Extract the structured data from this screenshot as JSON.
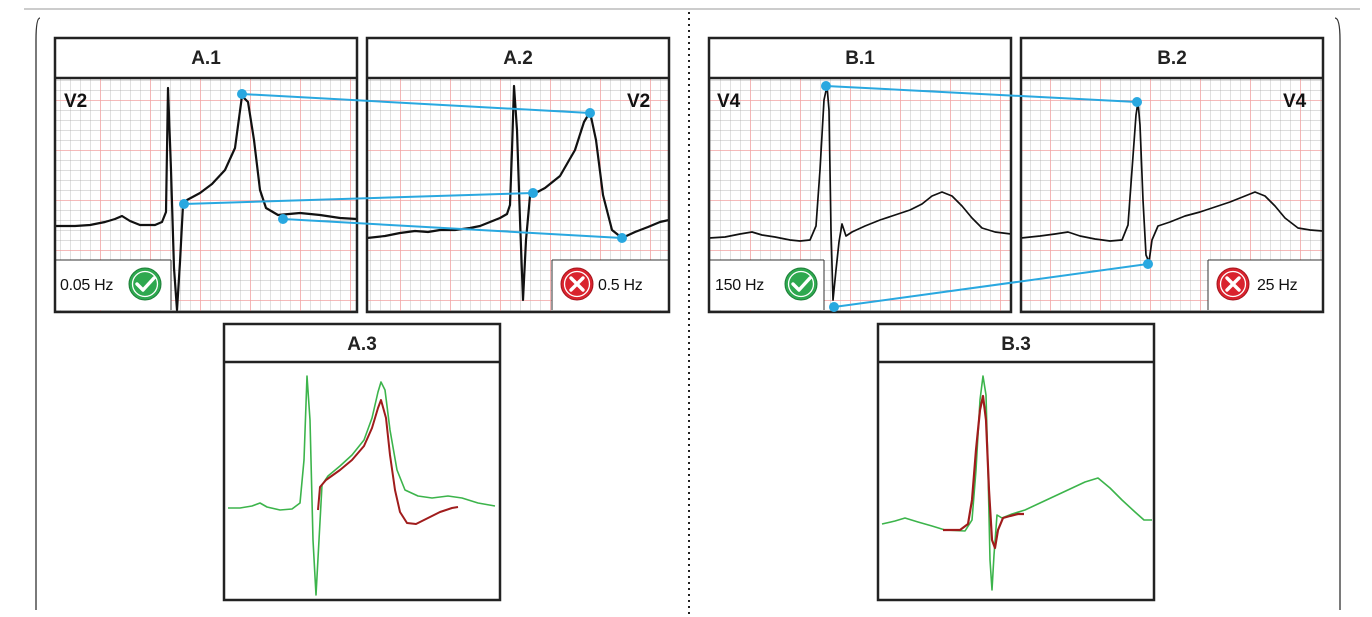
{
  "panels": {
    "a1": {
      "title": "A.1",
      "lead": "V2",
      "filter": "0.05 Hz",
      "status": "accepted"
    },
    "a2": {
      "title": "A.2",
      "lead": "V2",
      "filter": "0.5 Hz",
      "status": "rejected"
    },
    "a3": {
      "title": "A.3"
    },
    "b1": {
      "title": "B.1",
      "lead": "V4",
      "filter": "150 Hz",
      "status": "accepted"
    },
    "b2": {
      "title": "B.2",
      "lead": "V4",
      "filter": "25 Hz",
      "status": "rejected"
    },
    "b3": {
      "title": "B.3"
    }
  },
  "colors": {
    "grid_major": "#f2a3a3",
    "grid_minor": "#9a9a9a",
    "trace": "#111111",
    "connector": "#29a8e0",
    "accepted": "#2ea84f",
    "rejected": "#d9232e",
    "overlay_reference": "#3cb44b",
    "overlay_filtered": "#a01c1c"
  },
  "icons": {
    "accepted": "check-circle-icon",
    "rejected": "x-circle-icon"
  }
}
